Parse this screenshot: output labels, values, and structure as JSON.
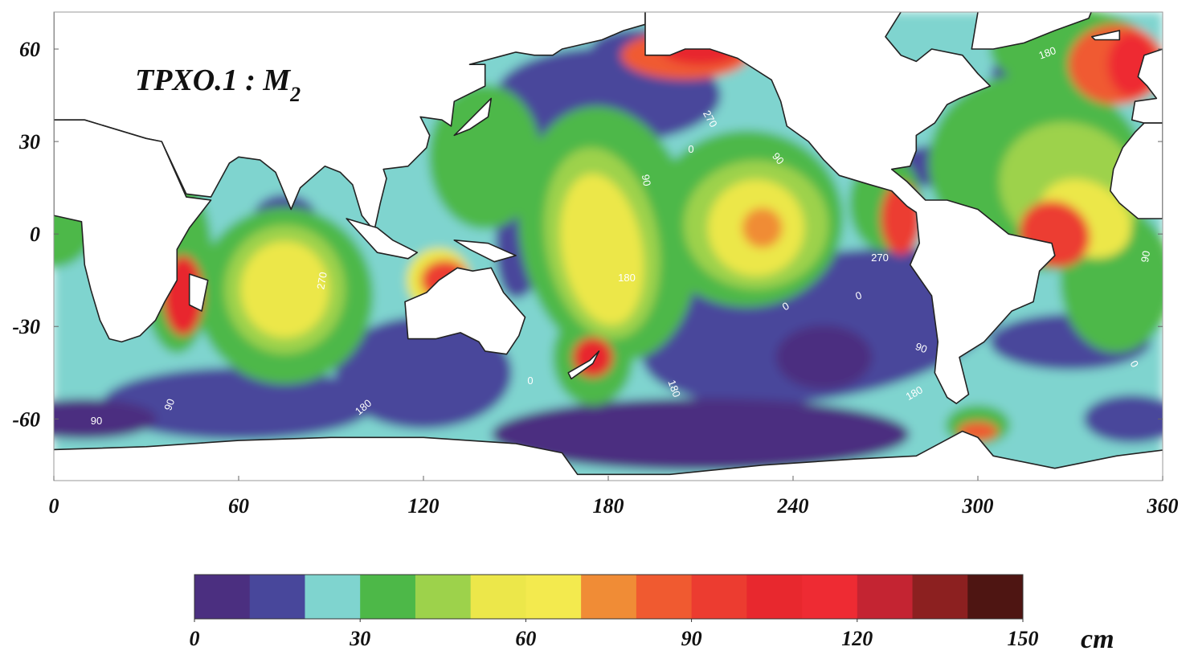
{
  "map": {
    "title": {
      "main": "TPXO.1 : M",
      "subscript": "2"
    },
    "lon_range": [
      0,
      360
    ],
    "lat_range": [
      -80,
      72
    ],
    "xticks": [
      0,
      60,
      120,
      180,
      240,
      300,
      360
    ],
    "yticks": [
      60,
      30,
      0,
      -30,
      -60
    ],
    "contour_labels": [
      "180",
      "270",
      "0",
      "90",
      "90",
      "270",
      "0",
      "180",
      "0",
      "180",
      "90",
      "180",
      "270",
      "90",
      "180",
      "90",
      "0",
      "90",
      "0",
      "180"
    ],
    "colorbar": {
      "range": [
        0,
        150
      ],
      "ticks": [
        0,
        30,
        60,
        90,
        120,
        150
      ],
      "unit": "cm",
      "colors": [
        "#4b2f80",
        "#48479b",
        "#7fd4cf",
        "#4db848",
        "#9dd24b",
        "#ece74a",
        "#f3ea4e",
        "#f08c36",
        "#f05a30",
        "#ec3c30",
        "#e8282e",
        "#ee2b33",
        "#c42432",
        "#8c2020",
        "#4e1512"
      ]
    }
  }
}
